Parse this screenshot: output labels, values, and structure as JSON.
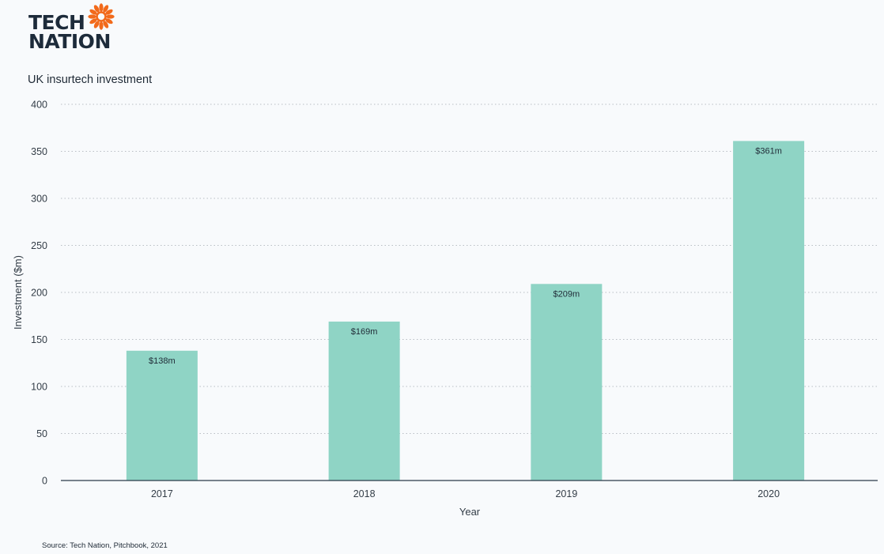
{
  "logo": {
    "line1": "TECH",
    "line2": "NATION",
    "text_color": "#1d2b3a",
    "sun_color": "#f26a1b",
    "icon": "sun-icon"
  },
  "source": "Source: Tech Nation, Pitchbook, 2021",
  "colors": {
    "bar": "#8fd4c5",
    "grid": "#b9bec4",
    "axis": "#2a3a4a"
  },
  "chart_data": {
    "type": "bar",
    "title": "UK insurtech investment",
    "xlabel": "Year",
    "ylabel": "Investment ($m)",
    "categories": [
      "2017",
      "2018",
      "2019",
      "2020"
    ],
    "values": [
      138,
      169,
      209,
      361
    ],
    "data_labels": [
      "$138m",
      "$169m",
      "$209m",
      "$361m"
    ],
    "ylim": [
      0,
      400
    ],
    "yticks": [
      0,
      50,
      100,
      150,
      200,
      250,
      300,
      350,
      400
    ],
    "grid": true,
    "legend": "none"
  }
}
